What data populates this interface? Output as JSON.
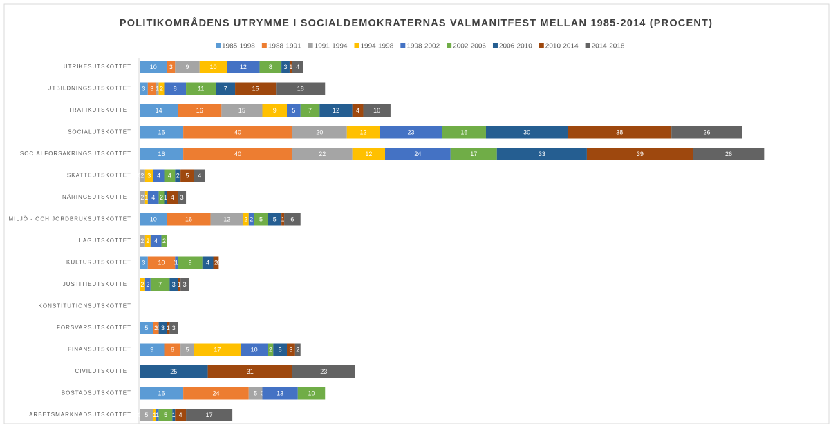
{
  "chart_data": {
    "type": "stacked-bar-horizontal",
    "title": "POLITIKOMRÅDENS UTRYMME I SOCIALDEMOKRATERNAS VALMANITFEST MELLAN 1985-2014 (PROCENT)",
    "categories": [
      "UTRIKESUTSKOTTET",
      "UTBILDNINGSUTSKOTTET",
      "TRAFIKUTSKOTTET",
      "SOCIALUTSKOTTET",
      "SOCIALFÖRSÄKRINGSUTSKOTTET",
      "SKATTEUTSKOTTET",
      "NÄRINGSUTSKOTTET",
      "MILJÖ - OCH JORDBRUKSUTSKOTTET",
      "LAGUTSKOTTET",
      "KULTURUTSKOTTET",
      "JUSTITIEUTSKOTTET",
      "KONSTITUTIONSUTSKOTTET",
      "FÖRSVARSUTSKOTTET",
      "FINANSUTSKOTTET",
      "CIVILUTSKOTTET",
      "BOSTADSUTSKOTTET",
      "ARBETSMARKNADSUTSKOTTET"
    ],
    "xlim": [
      0,
      253
    ],
    "series": [
      {
        "name": "1985-1998",
        "color": "#5b9bd5",
        "values": [
          10,
          3,
          14,
          16,
          16,
          0,
          null,
          10,
          null,
          3,
          null,
          null,
          5,
          9,
          null,
          16,
          0
        ]
      },
      {
        "name": "1988-1991",
        "color": "#ed7d31",
        "values": [
          3,
          3,
          16,
          40,
          40,
          null,
          null,
          16,
          null,
          10,
          null,
          null,
          2,
          6,
          null,
          24,
          null
        ]
      },
      {
        "name": "1991-1994",
        "color": "#a5a5a5",
        "values": [
          9,
          1,
          15,
          20,
          22,
          2,
          2,
          12,
          2,
          0,
          null,
          null,
          0,
          5,
          null,
          5,
          5
        ]
      },
      {
        "name": "1994-1998",
        "color": "#ffc000",
        "values": [
          10,
          2,
          9,
          12,
          12,
          3,
          1,
          2,
          2,
          null,
          2,
          null,
          null,
          17,
          null,
          0,
          1
        ]
      },
      {
        "name": "1998-2002",
        "color": "#4472c4",
        "values": [
          12,
          8,
          5,
          23,
          24,
          4,
          4,
          2,
          4,
          1,
          2,
          null,
          null,
          10,
          null,
          13,
          1
        ]
      },
      {
        "name": "2002-2006",
        "color": "#70ad47",
        "values": [
          8,
          11,
          7,
          16,
          17,
          4,
          2,
          5,
          2,
          9,
          7,
          null,
          null,
          2,
          null,
          10,
          5
        ]
      },
      {
        "name": "2006-2010",
        "color": "#255e91",
        "values": [
          3,
          7,
          12,
          30,
          33,
          2,
          1,
          5,
          null,
          4,
          3,
          null,
          3,
          5,
          25,
          null,
          1
        ]
      },
      {
        "name": "2010-2014",
        "color": "#9e480e",
        "values": [
          1,
          15,
          4,
          38,
          39,
          5,
          4,
          1,
          null,
          2,
          1,
          null,
          1,
          3,
          31,
          null,
          4
        ]
      },
      {
        "name": "2014-2018",
        "color": "#636363",
        "values": [
          4,
          18,
          10,
          26,
          26,
          4,
          3,
          6,
          null,
          0,
          3,
          null,
          3,
          2,
          23,
          null,
          17
        ]
      }
    ]
  }
}
